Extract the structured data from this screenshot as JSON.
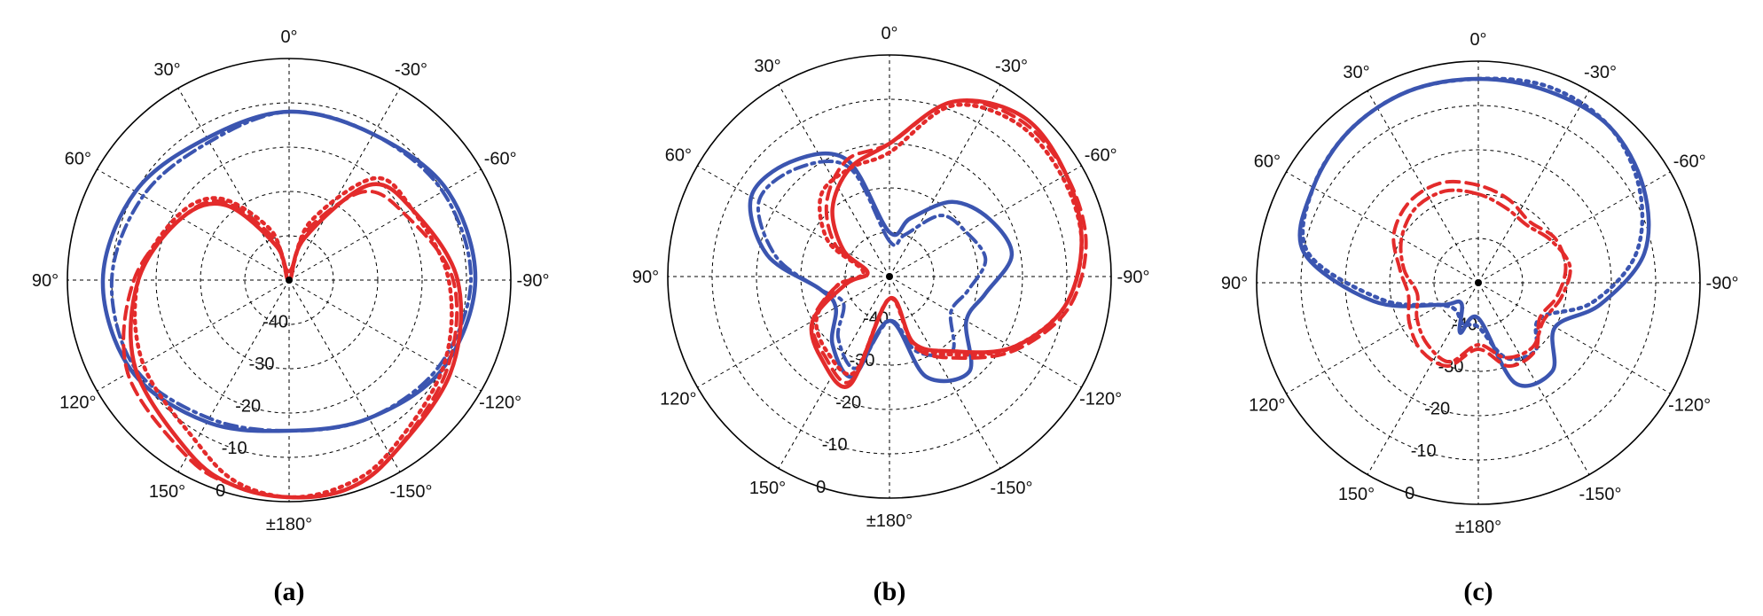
{
  "chart_data": [
    {
      "type": "polar",
      "panel_label": "(a)",
      "angle_labels": [
        "0°",
        "30°",
        "60°",
        "90°",
        "120°",
        "150°",
        "±180°",
        "-150°",
        "-120°",
        "-90°",
        "-60°",
        "-30°"
      ],
      "radial_labels": [
        "-40",
        "-30",
        "-20",
        "-10",
        "0"
      ],
      "rlim": [
        -50,
        0
      ],
      "grid": true,
      "series": [
        {
          "color": "#3b55b0",
          "style": "solid",
          "theta": [
            0,
            30,
            60,
            90,
            120,
            150,
            180,
            210,
            240,
            270,
            300,
            330
          ],
          "r": [
            -12,
            -13,
            -10,
            -8,
            -9,
            -13,
            -16,
            -14,
            -10,
            -8,
            -9,
            -12
          ]
        },
        {
          "color": "#3b55b0",
          "style": "dashdot",
          "theta": [
            0,
            30,
            60,
            90,
            120,
            150,
            180,
            210,
            240,
            270,
            300,
            330
          ],
          "r": [
            -12,
            -14,
            -12,
            -10,
            -10,
            -14,
            -16,
            -14,
            -11,
            -9,
            -10,
            -12
          ]
        },
        {
          "color": "#e32b2b",
          "style": "solid",
          "theta": [
            0,
            20,
            40,
            60,
            90,
            120,
            150,
            165,
            180,
            195,
            210,
            240,
            270,
            300,
            320,
            340
          ],
          "r": [
            -50,
            -42,
            -28,
            -22,
            -16,
            -10,
            -5,
            -2,
            -1,
            -1,
            -4,
            -8,
            -12,
            -18,
            -22,
            -40
          ]
        },
        {
          "color": "#e32b2b",
          "style": "dashed",
          "theta": [
            0,
            20,
            40,
            60,
            90,
            120,
            150,
            165,
            180,
            195,
            210,
            240,
            270,
            300,
            320,
            340
          ],
          "r": [
            -48,
            -40,
            -27,
            -22,
            -15,
            -8,
            -4,
            -2,
            -1,
            -1,
            -4,
            -9,
            -13,
            -20,
            -24,
            -38
          ]
        },
        {
          "color": "#e32b2b",
          "style": "dotted",
          "theta": [
            0,
            20,
            40,
            60,
            90,
            120,
            150,
            165,
            180,
            195,
            210,
            240,
            270,
            300,
            320,
            340
          ],
          "r": [
            -48,
            -38,
            -26,
            -21,
            -16,
            -12,
            -8,
            -3,
            -1,
            -2,
            -5,
            -10,
            -14,
            -18,
            -20,
            -36
          ]
        }
      ]
    },
    {
      "type": "polar",
      "panel_label": "(b)",
      "angle_labels": [
        "0°",
        "30°",
        "60°",
        "90°",
        "120°",
        "150°",
        "±180°",
        "-150°",
        "-120°",
        "-90°",
        "-60°",
        "-30°"
      ],
      "radial_labels": [
        "-40",
        "-30",
        "-20",
        "-10",
        "0"
      ],
      "rlim": [
        -50,
        0
      ],
      "grid": true,
      "series": [
        {
          "color": "#3b55b0",
          "style": "solid",
          "theta": [
            0,
            20,
            40,
            60,
            80,
            100,
            120,
            140,
            160,
            180,
            200,
            220,
            240,
            260,
            280,
            300,
            320,
            340
          ],
          "r": [
            -40,
            -22,
            -16,
            -14,
            -22,
            -34,
            -36,
            -30,
            -26,
            -40,
            -26,
            -22,
            -30,
            -28,
            -22,
            -24,
            -28,
            -36
          ]
        },
        {
          "color": "#3b55b0",
          "style": "dashdot",
          "theta": [
            0,
            20,
            40,
            60,
            80,
            100,
            120,
            140,
            160,
            180,
            200,
            220,
            240,
            260,
            280,
            300,
            320,
            340
          ],
          "r": [
            -42,
            -24,
            -18,
            -16,
            -24,
            -34,
            -38,
            -32,
            -28,
            -40,
            -32,
            -28,
            -34,
            -32,
            -28,
            -30,
            -32,
            -40
          ]
        },
        {
          "color": "#e32b2b",
          "style": "solid",
          "theta": [
            0,
            20,
            40,
            60,
            80,
            100,
            120,
            140,
            160,
            180,
            200,
            220,
            240,
            260,
            280,
            300,
            320,
            340
          ],
          "r": [
            -20,
            -24,
            -30,
            -38,
            -45,
            -40,
            -30,
            -26,
            -24,
            -45,
            -34,
            -28,
            -18,
            -10,
            -6,
            -4,
            -3,
            -8
          ]
        },
        {
          "color": "#e32b2b",
          "style": "dashed",
          "theta": [
            0,
            20,
            40,
            60,
            80,
            100,
            120,
            140,
            160,
            180,
            200,
            220,
            240,
            260,
            280,
            300,
            320,
            340
          ],
          "r": [
            -20,
            -22,
            -28,
            -36,
            -45,
            -38,
            -30,
            -27,
            -25,
            -45,
            -33,
            -26,
            -17,
            -9,
            -5,
            -4,
            -4,
            -8
          ]
        },
        {
          "color": "#e32b2b",
          "style": "dotted",
          "theta": [
            0,
            20,
            40,
            60,
            80,
            100,
            120,
            140,
            160,
            180,
            200,
            220,
            240,
            260,
            280,
            300,
            320,
            340
          ],
          "r": [
            -22,
            -24,
            -26,
            -34,
            -44,
            -38,
            -31,
            -28,
            -27,
            -45,
            -34,
            -27,
            -18,
            -10,
            -6,
            -5,
            -5,
            -9
          ]
        }
      ]
    },
    {
      "type": "polar",
      "panel_label": "(c)",
      "angle_labels": [
        "0°",
        "30°",
        "60°",
        "90°",
        "120°",
        "150°",
        "±180°",
        "-150°",
        "-120°",
        "-90°",
        "-60°",
        "-30°"
      ],
      "radial_labels": [
        "-40",
        "-30",
        "-20",
        "-10",
        "0"
      ],
      "rlim": [
        -50,
        0
      ],
      "grid": true,
      "series": [
        {
          "color": "#3b55b0",
          "style": "solid",
          "theta": [
            0,
            20,
            40,
            60,
            80,
            100,
            120,
            140,
            160,
            180,
            200,
            220,
            240,
            260,
            280,
            300,
            320,
            340
          ],
          "r": [
            -4,
            -4,
            -5,
            -7,
            -10,
            -26,
            -40,
            -44,
            -38,
            -42,
            -26,
            -24,
            -30,
            -22,
            -12,
            -7,
            -4,
            -4
          ]
        },
        {
          "color": "#3b55b0",
          "style": "dotted",
          "theta": [
            0,
            20,
            40,
            60,
            80,
            100,
            120,
            140,
            160,
            180,
            200,
            220,
            240,
            260,
            280,
            300,
            320,
            340
          ],
          "r": [
            -4,
            -4,
            -5,
            -7,
            -11,
            -28,
            -40,
            -42,
            -40,
            -40,
            -32,
            -30,
            -34,
            -24,
            -14,
            -8,
            -4,
            -3
          ]
        },
        {
          "color": "#e32b2b",
          "style": "dashed",
          "theta": [
            0,
            20,
            40,
            60,
            80,
            100,
            120,
            140,
            160,
            180,
            200,
            220,
            240,
            260,
            280,
            300,
            320,
            340
          ],
          "r": [
            -28,
            -26,
            -26,
            -28,
            -32,
            -34,
            -32,
            -30,
            -30,
            -35,
            -30,
            -30,
            -34,
            -32,
            -30,
            -30,
            -32,
            -30
          ]
        },
        {
          "color": "#e32b2b",
          "style": "dashdot",
          "theta": [
            0,
            20,
            40,
            60,
            80,
            100,
            120,
            140,
            160,
            180,
            200,
            220,
            240,
            260,
            280,
            300,
            320,
            340
          ],
          "r": [
            -30,
            -28,
            -28,
            -30,
            -33,
            -36,
            -34,
            -32,
            -31,
            -36,
            -32,
            -31,
            -33,
            -31,
            -29,
            -31,
            -33,
            -32
          ]
        }
      ]
    }
  ]
}
